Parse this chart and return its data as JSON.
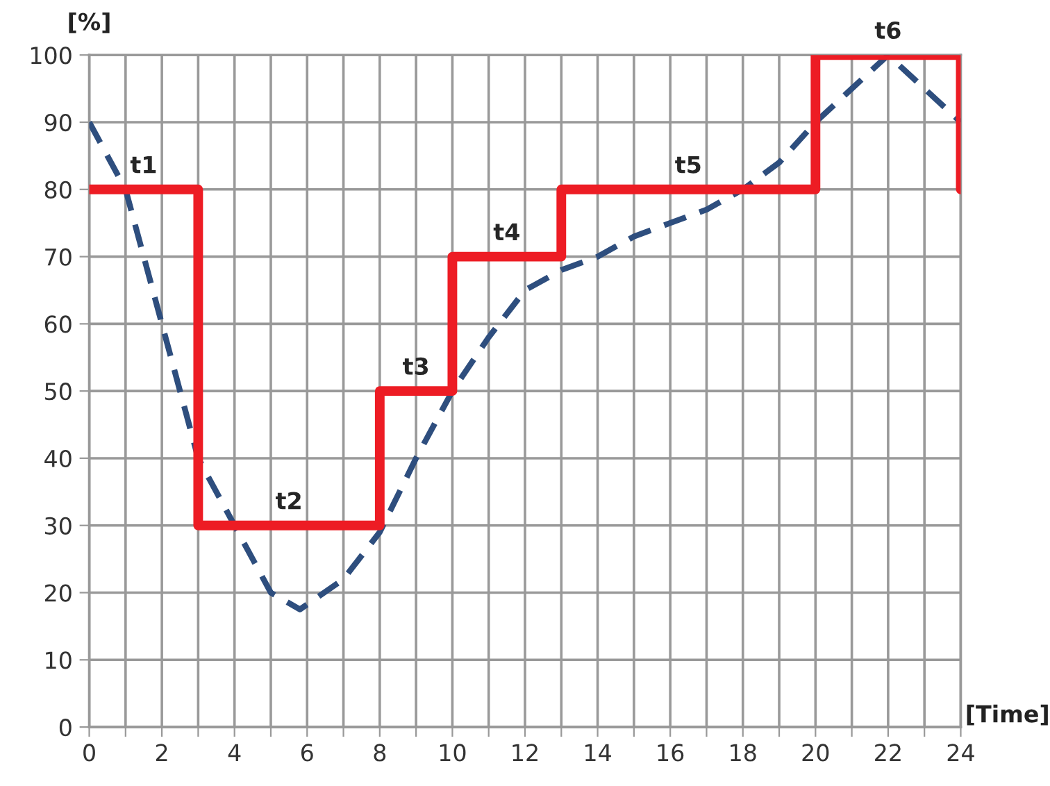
{
  "chart_data": {
    "type": "step",
    "xlabel": "[Time]",
    "ylabel": "[%]",
    "series": [
      {
        "color": "#ed1c24",
        "line_style": "solid",
        "x": [
          0,
          3,
          8,
          10,
          13,
          20,
          24
        ],
        "values": [
          80,
          30,
          50,
          70,
          80,
          100,
          80
        ]
      },
      {
        "type": "line",
        "color": "#2e4e7e",
        "line_style": "dashed",
        "x": [
          0,
          1,
          2,
          3,
          4,
          5,
          5.8,
          7,
          8,
          9,
          10,
          11,
          12,
          13,
          14,
          15,
          16,
          17,
          18,
          19,
          20,
          21,
          22,
          23,
          24
        ],
        "values": [
          90,
          80,
          60,
          40,
          30,
          20,
          17.5,
          22,
          29,
          40,
          50,
          58,
          65,
          68,
          70,
          73,
          75,
          77,
          80,
          84,
          90,
          95,
          100,
          95,
          90
        ]
      }
    ],
    "annotations": [
      "t1",
      "t2",
      "t3",
      "t4",
      "t5",
      "t6"
    ],
    "xlim": [
      0,
      24
    ],
    "xticks": [
      0,
      {
        "value": 1,
        "label": null
      },
      2,
      {
        "value": 3,
        "label": null
      },
      4,
      {
        "value": 5,
        "label": null
      },
      6,
      {
        "value": 7,
        "label": null
      },
      8,
      {
        "value": 9,
        "label": null
      },
      10,
      {
        "value": 11,
        "label": null
      },
      12,
      {
        "value": 13,
        "label": null
      },
      14,
      {
        "value": 15,
        "label": null
      },
      16,
      {
        "value": 17,
        "label": null
      },
      18,
      {
        "value": 19,
        "label": null
      },
      20,
      {
        "value": 21,
        "label": null
      },
      22,
      {
        "value": 23,
        "label": null
      },
      24
    ],
    "ylim": [
      0,
      100
    ],
    "yticks": [
      0,
      10,
      20,
      30,
      40,
      50,
      60,
      70,
      80,
      90,
      100
    ],
    "grid": true,
    "legend": false,
    "marker": "none"
  }
}
